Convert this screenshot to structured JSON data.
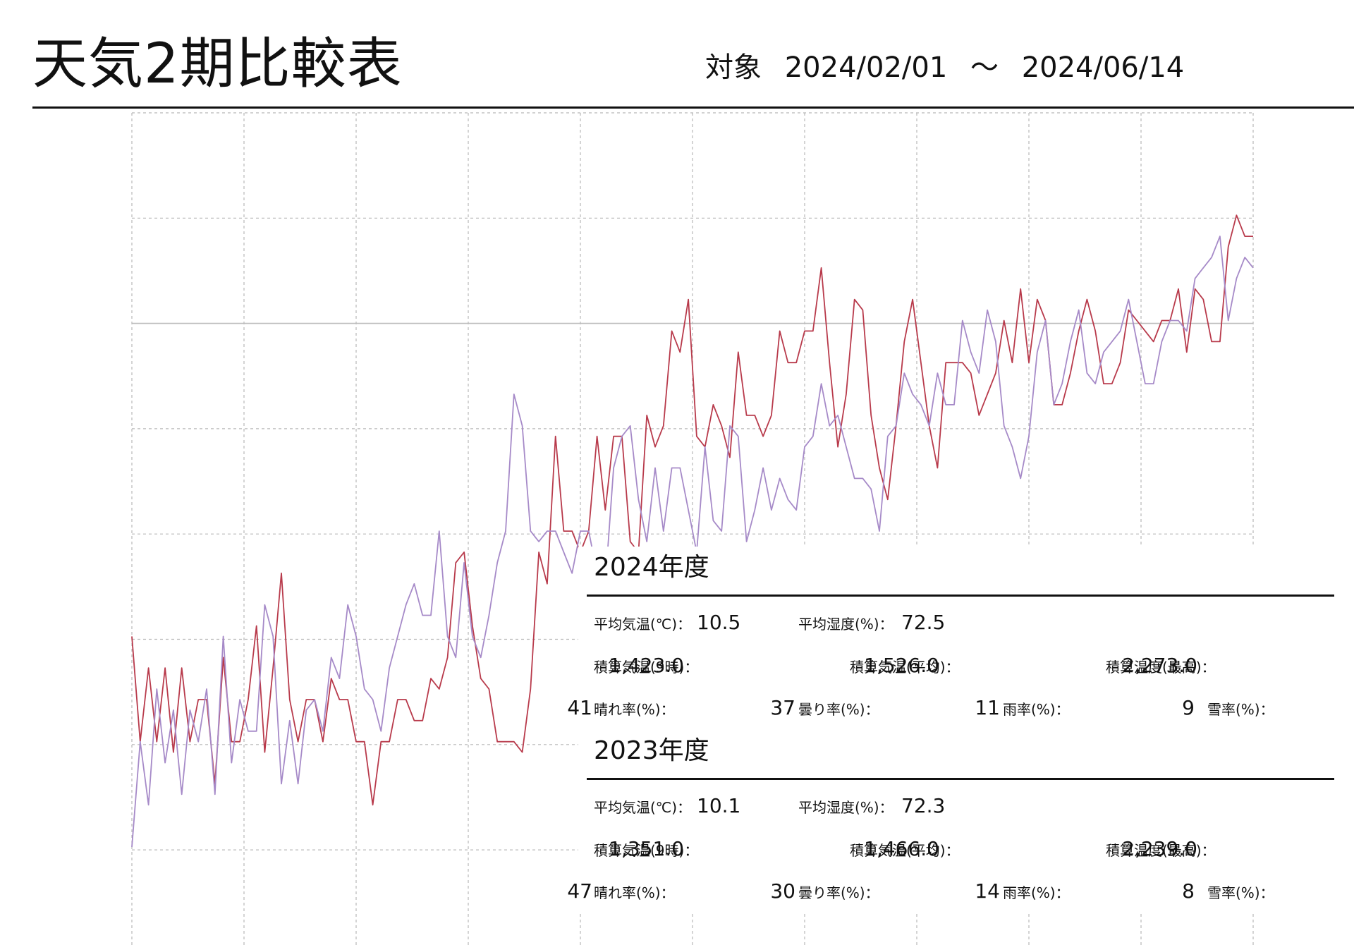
{
  "page": {
    "title": "天気2期比較表",
    "range_label": "対象",
    "range_start": "2024/02/01",
    "range_sep": "～",
    "range_end": "2024/06/14"
  },
  "colors": {
    "current": "#b83a4b",
    "previous": "#a68ac8",
    "grid": "#b8b8b8",
    "baseline": "#bdbdbd",
    "rule": "#111111"
  },
  "chart_data": {
    "type": "line",
    "grid": true,
    "gridlines_y": 8,
    "gridlines_x": 11,
    "baseline_index": 2,
    "ylim": [
      0,
      8
    ],
    "series": [
      {
        "key": "current",
        "values": [
          2.0,
          1.0,
          1.7,
          1.0,
          1.7,
          0.9,
          1.7,
          1.0,
          1.4,
          1.4,
          0.6,
          1.8,
          1.0,
          1.0,
          1.4,
          2.1,
          0.9,
          1.7,
          2.6,
          1.4,
          1.0,
          1.4,
          1.4,
          1.0,
          1.6,
          1.4,
          1.4,
          1.0,
          1.0,
          0.4,
          1.0,
          1.0,
          1.4,
          1.4,
          1.2,
          1.2,
          1.6,
          1.5,
          1.8,
          2.7,
          2.8,
          2.1,
          1.6,
          1.5,
          1.0,
          1.0,
          1.0,
          0.9,
          1.5,
          2.8,
          2.5,
          3.9,
          3.0,
          3.0,
          2.8,
          3.0,
          3.9,
          3.2,
          3.9,
          3.9,
          2.9,
          2.8,
          4.1,
          3.8,
          4.0,
          4.9,
          4.7,
          5.2,
          3.9,
          3.8,
          4.2,
          4.0,
          3.7,
          4.7,
          4.1,
          4.1,
          3.9,
          4.1,
          4.9,
          4.6,
          4.6,
          4.9,
          4.9,
          5.5,
          4.6,
          3.8,
          4.3,
          5.2,
          5.1,
          4.1,
          3.6,
          3.3,
          4.0,
          4.8,
          5.2,
          4.6,
          4.0,
          3.6,
          4.6,
          4.6,
          4.6,
          4.5,
          4.1,
          4.3,
          4.5,
          5.0,
          4.6,
          5.3,
          4.6,
          5.2,
          5.0,
          4.2,
          4.2,
          4.5,
          4.9,
          5.2,
          4.9,
          4.4,
          4.4,
          4.6,
          5.1,
          5.0,
          4.9,
          4.8,
          5.0,
          5.0,
          5.3,
          4.7,
          5.3,
          5.2,
          4.8,
          4.8,
          5.7,
          6.0,
          5.8,
          5.8
        ]
      },
      {
        "key": "previous",
        "values": [
          0.0,
          1.0,
          0.4,
          1.5,
          0.8,
          1.3,
          0.5,
          1.3,
          1.0,
          1.5,
          0.5,
          2.0,
          0.8,
          1.4,
          1.1,
          1.1,
          2.3,
          2.0,
          0.6,
          1.2,
          0.6,
          1.3,
          1.4,
          1.1,
          1.8,
          1.6,
          2.3,
          2.0,
          1.5,
          1.4,
          1.1,
          1.7,
          2.0,
          2.3,
          2.5,
          2.2,
          2.2,
          3.0,
          2.0,
          1.8,
          2.7,
          2.0,
          1.8,
          2.2,
          2.7,
          3.0,
          4.3,
          4.0,
          3.0,
          2.9,
          3.0,
          3.0,
          2.8,
          2.6,
          3.0,
          3.0,
          2.6,
          2.5,
          3.6,
          3.9,
          4.0,
          3.3,
          2.9,
          3.6,
          3.0,
          3.6,
          3.6,
          3.2,
          2.8,
          3.8,
          3.1,
          3.0,
          4.0,
          3.9,
          2.9,
          3.2,
          3.6,
          3.2,
          3.5,
          3.3,
          3.2,
          3.8,
          3.9,
          4.4,
          4.0,
          4.1,
          3.8,
          3.5,
          3.5,
          3.4,
          3.0,
          3.9,
          4.0,
          4.5,
          4.3,
          4.2,
          4.0,
          4.5,
          4.2,
          4.2,
          5.0,
          4.7,
          4.5,
          5.1,
          4.8,
          4.0,
          3.8,
          3.5,
          3.9,
          4.7,
          5.0,
          4.2,
          4.4,
          4.8,
          5.1,
          4.5,
          4.4,
          4.7,
          4.8,
          4.9,
          5.2,
          4.8,
          4.4,
          4.4,
          4.8,
          5.0,
          5.0,
          4.9,
          5.4,
          5.5,
          5.6,
          5.8,
          5.0,
          5.4,
          5.6,
          5.5
        ]
      }
    ]
  },
  "seasons": [
    {
      "heading": "2024年度",
      "avg_temp_label": "平均気温(℃)：",
      "avg_temp": "10.5",
      "avg_hum_label": "平均湿度(%)：",
      "avg_hum": "72.5",
      "acc9_label": "積算気温(9時)：",
      "acc9": "1,423.0",
      "accavg_label": "積算気温(平均)：",
      "accavg": "1,526.0",
      "accmax_label": "積算温度(最高)：",
      "accmax": "2,273.0",
      "sunny_label": "晴れ率(%)：",
      "sunny": "41",
      "cloudy_label": "曇り率(%)：",
      "cloudy": "37",
      "rain_label": "雨率(%)：",
      "rain": "11",
      "snow_label": "雪率(%)：",
      "snow": "9"
    },
    {
      "heading": "2023年度",
      "avg_temp_label": "平均気温(℃)：",
      "avg_temp": "10.1",
      "avg_hum_label": "平均湿度(%)：",
      "avg_hum": "72.3",
      "acc9_label": "積算気温(9時)：",
      "acc9": "1,351.0",
      "accavg_label": "積算気温(平均)：",
      "accavg": "1,466.0",
      "accmax_label": "積算温度(最高)：",
      "accmax": "2,239.0",
      "sunny_label": "晴れ率(%)：",
      "sunny": "47",
      "cloudy_label": "曇り率(%)：",
      "cloudy": "30",
      "rain_label": "雨率(%)：",
      "rain": "14",
      "snow_label": "雪率(%)：",
      "snow": "8"
    }
  ]
}
